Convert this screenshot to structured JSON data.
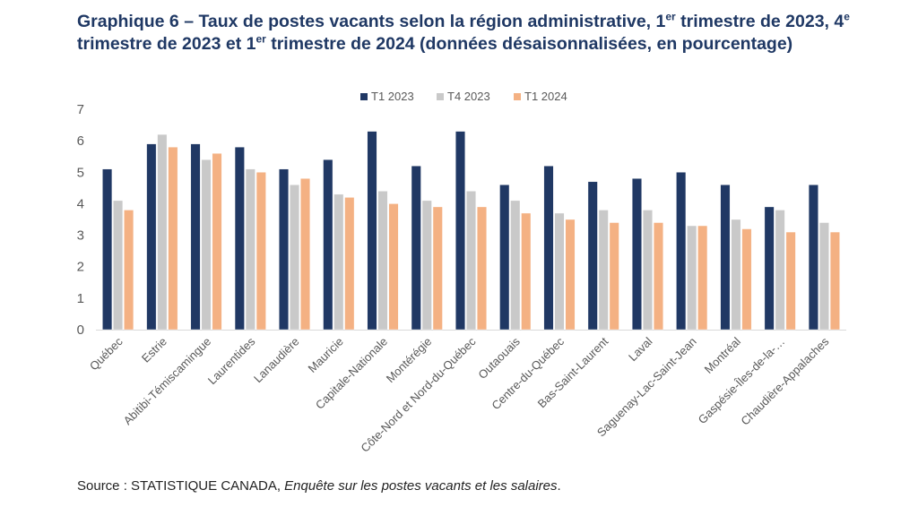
{
  "title": {
    "prefix": "Graphique 6 – Taux de postes vacants selon la région administrative, 1",
    "sup1": "er",
    "mid1": " trimestre de 2023, 4",
    "sup2": "e",
    "mid2": " trimestre de 2023 et 1",
    "sup3": "er",
    "suffix": " trimestre de 2024 (données désaisonnalisées, en pourcentage)"
  },
  "source": {
    "label": "Source : STATISTIQUE CANADA, ",
    "publication": "Enquête sur les postes vacants et les salaires",
    "end": "."
  },
  "colors": {
    "T1 2023": "#203864",
    "T4 2023": "#c9c9c9",
    "T1 2024": "#f4b183",
    "grid": "#d9d9d9",
    "axis_text": "#595959"
  },
  "chart_data": {
    "type": "bar",
    "categories": [
      "Québec",
      "Estrie",
      "Abitibi-Témiscamingue",
      "Laurentides",
      "Lanaudière",
      "Mauricie",
      "Capitale-Nationale",
      "Montérégie",
      "Côte-Nord et Nord-du-Québec",
      "Outaouais",
      "Centre-du-Québec",
      "Bas-Saint-Laurent",
      "Laval",
      "Saguenay-Lac-Saint-Jean",
      "Montréal",
      "Gaspésie-Îles-de-la-…",
      "Chaudière-Appalaches"
    ],
    "series": [
      {
        "name": "T1 2023",
        "values": [
          5.1,
          5.9,
          5.9,
          5.8,
          5.1,
          5.4,
          6.3,
          5.2,
          6.3,
          4.6,
          5.2,
          4.7,
          4.8,
          5.0,
          4.6,
          3.9,
          4.6
        ]
      },
      {
        "name": "T4 2023",
        "values": [
          4.1,
          6.2,
          5.4,
          5.1,
          4.6,
          4.3,
          4.4,
          4.1,
          4.4,
          4.1,
          3.7,
          3.8,
          3.8,
          3.3,
          3.5,
          3.8,
          3.4
        ]
      },
      {
        "name": "T1 2024",
        "values": [
          3.8,
          5.8,
          5.6,
          5.0,
          4.8,
          4.2,
          4.0,
          3.9,
          3.9,
          3.7,
          3.5,
          3.4,
          3.4,
          3.3,
          3.2,
          3.1,
          3.1
        ]
      }
    ],
    "ylim": [
      0,
      7
    ],
    "yticks": [
      0,
      1,
      2,
      3,
      4,
      5,
      6,
      7
    ],
    "ytick_labels": [
      "0",
      "1",
      "2",
      "3",
      "4",
      "5",
      "6",
      "7"
    ],
    "grid": false,
    "legend": "top-center",
    "xlabel": "",
    "ylabel": ""
  }
}
